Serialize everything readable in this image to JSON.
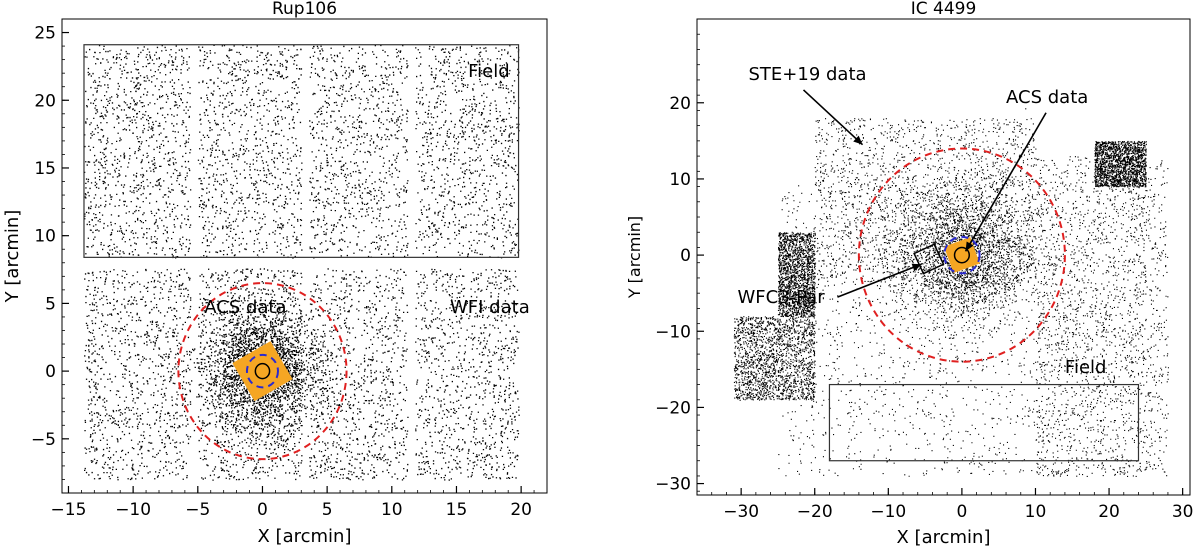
{
  "figure": {
    "background": "#ffffff"
  },
  "chart_data": [
    {
      "type": "scatter",
      "title": "Rup106",
      "xlabel": "X [arcmin]",
      "ylabel": "Y [arcmin]",
      "xlim": [
        -15.5,
        22
      ],
      "ylim": [
        -9,
        26
      ],
      "xticks": [
        -15,
        -10,
        -5,
        0,
        5,
        10,
        15,
        20
      ],
      "yticks": [
        -5,
        0,
        5,
        10,
        15,
        20,
        25
      ],
      "grid": false,
      "point_color": "#000000",
      "field_regions": [
        {
          "name": "field-region",
          "x0": -13.8,
          "x1": 19.8,
          "y0": 8.4,
          "y1": 24.1
        }
      ],
      "star_field": {
        "bounds": [
          -13.8,
          19.8,
          -8,
          24.1
        ],
        "gaps_x": [
          [
            -5.6,
            -5.0
          ],
          [
            3.0,
            3.6
          ],
          [
            11.2,
            11.8
          ]
        ],
        "gaps_y": [
          [
            7.6,
            8.4
          ]
        ],
        "center": [
          0,
          0
        ]
      },
      "acs_data": {
        "center": [
          0,
          0
        ],
        "half_width": 1.7,
        "rotation_deg": 30,
        "color": "#f5a623"
      },
      "circles": [
        {
          "name": "tidal-radius-circle",
          "cx": 0,
          "cy": 0,
          "r": 6.5,
          "color": "#e02020",
          "dash": true
        },
        {
          "name": "inner-blue-circle",
          "cx": 0,
          "cy": 0,
          "r": 1.2,
          "color": "#2a2ad0",
          "dash": true
        },
        {
          "name": "core-circle",
          "cx": 0,
          "cy": 0,
          "r": 0.55,
          "color": "#000000",
          "dash": false
        }
      ],
      "annotations": [
        {
          "name": "label-field",
          "text": "Field",
          "x": 15.9,
          "y": 21.7
        },
        {
          "name": "label-acs",
          "text": "ACS data",
          "x": -4.5,
          "y": 4.3
        },
        {
          "name": "label-wfi",
          "text": "WFI data",
          "x": 14.5,
          "y": 4.3
        }
      ]
    },
    {
      "type": "scatter",
      "title": "IC 4499",
      "xlabel": "X [arcmin]",
      "ylabel": "Y [arcmin]",
      "xlim": [
        -36,
        31
      ],
      "ylim": [
        -31.5,
        31
      ],
      "xticks": [
        -30,
        -20,
        -10,
        0,
        10,
        20,
        30
      ],
      "yticks": [
        -30,
        -20,
        -10,
        0,
        10,
        20
      ],
      "grid": false,
      "point_color": "#000000",
      "field_regions": [
        {
          "name": "field-region",
          "x0": -18,
          "x1": 24,
          "y0": -27,
          "y1": -17
        }
      ],
      "star_field": {
        "bounds": [
          -31,
          28,
          -29,
          19
        ],
        "center": [
          0,
          0
        ]
      },
      "acs_data": {
        "center": [
          0,
          0
        ],
        "half_width": 1.9,
        "rotation_deg": 20,
        "color": "#f5a623"
      },
      "wfc3_box": {
        "center": [
          -4.5,
          -0.5
        ],
        "half_width": 1.5,
        "rotation_deg": 25
      },
      "circles": [
        {
          "name": "tidal-radius-circle",
          "cx": 0,
          "cy": 0,
          "r": 14,
          "color": "#e02020",
          "dash": true
        },
        {
          "name": "inner-blue-circle",
          "cx": 0,
          "cy": 0,
          "r": 2.4,
          "color": "#2a2ad0",
          "dash": true
        },
        {
          "name": "core-circle",
          "cx": 0,
          "cy": 0,
          "r": 1.0,
          "color": "#000000",
          "dash": false
        }
      ],
      "annotations": [
        {
          "name": "label-ste19",
          "text": "STE+19 data",
          "x": -29,
          "y": 23,
          "arrow_to": [
            -13.5,
            14.5
          ]
        },
        {
          "name": "label-acs",
          "text": "ACS data",
          "x": 6,
          "y": 20,
          "arrow_to": [
            0.5,
            0.5
          ]
        },
        {
          "name": "label-wfc3",
          "text": "WFC3-Par",
          "x": -30.5,
          "y": -6.3,
          "arrow_to": [
            -5.5,
            -1.2
          ]
        },
        {
          "name": "label-field",
          "text": "Field",
          "x": 14,
          "y": -15.5
        }
      ]
    }
  ]
}
